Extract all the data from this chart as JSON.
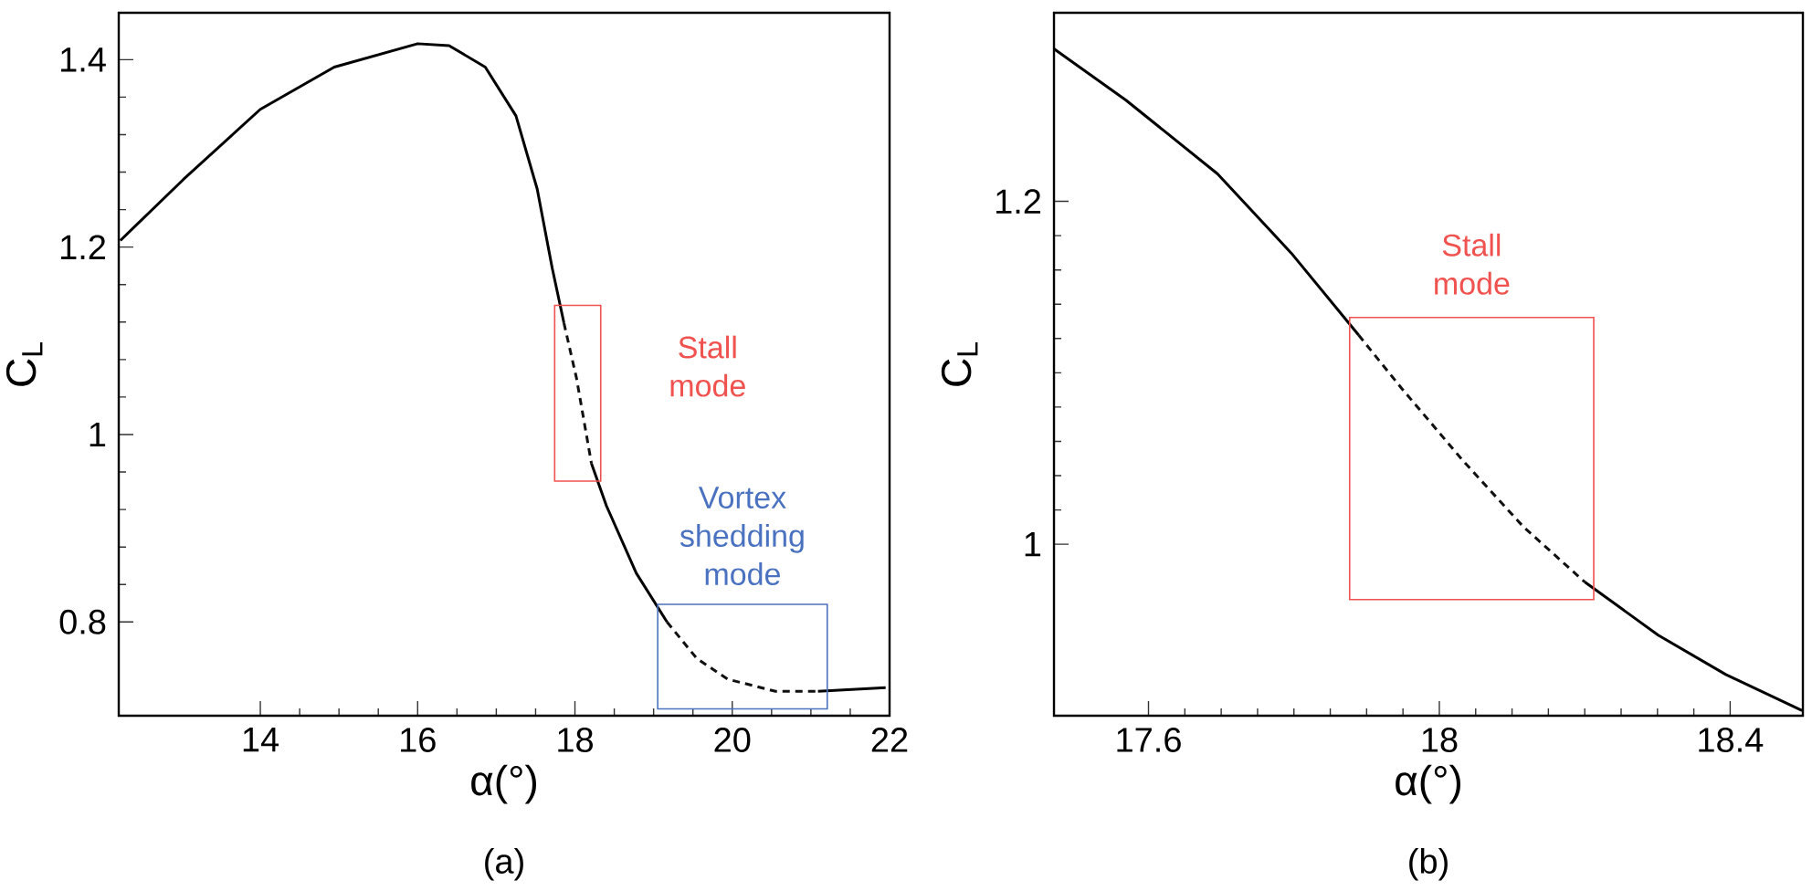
{
  "chart_data": [
    {
      "type": "line",
      "xlabel": "α(°)",
      "ylabel": "C$_{L}$",
      "xlim": [
        12.2,
        22
      ],
      "ylim": [
        0.7,
        1.45
      ],
      "xticks": [
        14,
        16,
        18,
        20,
        22
      ],
      "yticks": [
        0.8,
        1,
        1.2,
        1.4
      ],
      "series": [
        {
          "color": "#000000",
          "line_style": "solid",
          "x": [
            12.22,
            13.02,
            14,
            14.94,
            16,
            16.4,
            16.86,
            17.25,
            17.52,
            17.71,
            17.86,
            18.02,
            18.21,
            18.4,
            18.78,
            19.17,
            19.55,
            19.94,
            20.55,
            21.09,
            21.95
          ],
          "values": [
            1.207,
            1.272,
            1.347,
            1.392,
            1.417,
            1.415,
            1.392,
            1.34,
            1.262,
            1.178,
            1.119,
            null,
            0.969,
            0.924,
            0.852,
            0.8,
            null,
            null,
            null,
            0.726,
            0.73
          ]
        },
        {
          "color": "#101010",
          "line_style": "dashed",
          "x": [
            17.86,
            18.02,
            18.21
          ],
          "values": [
            1.119,
            1.06,
            0.969
          ]
        },
        {
          "color": "#101010",
          "line_style": "dashed",
          "x": [
            19.17,
            19.55,
            19.94,
            20.55,
            21.09
          ],
          "values": [
            0.8,
            0.761,
            0.739,
            0.726,
            0.726
          ]
        }
      ],
      "annotations": [
        "Stall mode",
        "Vortex shedding mode",
        "(a)"
      ]
    },
    {
      "type": "line",
      "xlabel": "α(°)",
      "ylabel": "C$_{L}$",
      "xlim": [
        17.47,
        18.5
      ],
      "ylim": [
        0.9,
        1.31
      ],
      "xticks": [
        17.6,
        18,
        18.4
      ],
      "yticks": [
        1,
        1.2
      ],
      "series": [
        {
          "color": "#000000",
          "line_style": "solid",
          "x": [
            17.47,
            17.569,
            17.695,
            17.796,
            17.889,
            17.948,
            18.2,
            18.301,
            18.394,
            18.499
          ],
          "values": [
            1.289,
            1.259,
            1.216,
            1.17,
            1.122,
            null,
            0.978,
            0.947,
            0.924,
            0.903
          ]
        },
        {
          "color": "#101010",
          "line_style": "dashed",
          "x": [
            17.889,
            17.948,
            18.032,
            18.116,
            18.2
          ],
          "values": [
            1.122,
            1.091,
            1.049,
            1.01,
            0.978
          ]
        }
      ],
      "annotations": [
        "Stall mode",
        "(b)"
      ]
    }
  ]
}
